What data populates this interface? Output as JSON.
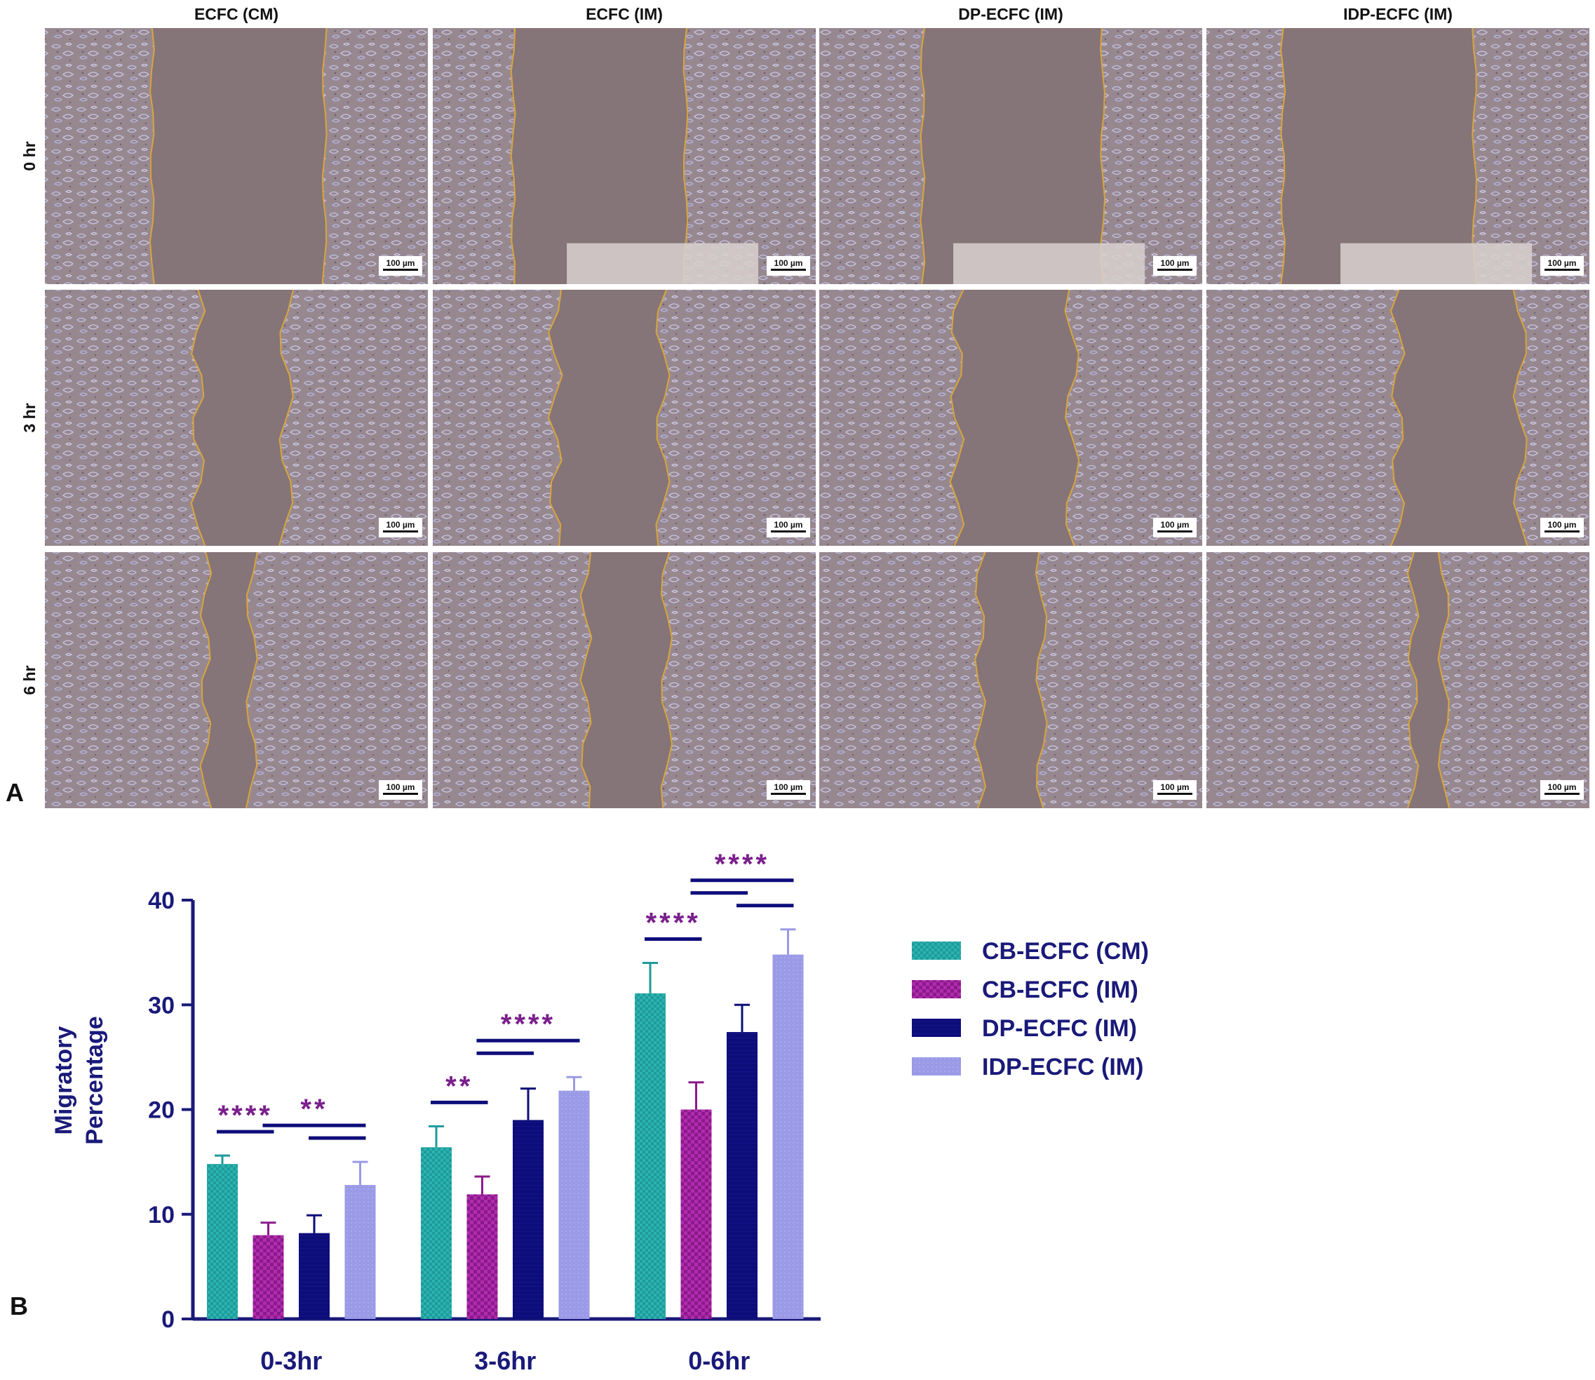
{
  "panel_a": {
    "letter": "A",
    "columns": [
      "ECFC (CM)",
      "ECFC (IM)",
      "DP-ECFC (IM)",
      "IDP-ECFC (IM)"
    ],
    "rows": [
      "0 hr",
      "3 hr",
      "6 hr"
    ],
    "scale_bar_label": "100 µm",
    "colors": {
      "tissue": "#978890",
      "gap": "#857478",
      "wound_edge": "#d9a53a",
      "scale_bar": "#111111"
    }
  },
  "panel_b": {
    "letter": "B"
  },
  "chart_data": {
    "type": "bar",
    "categories": [
      "0-3hr",
      "3-6hr",
      "0-6hr"
    ],
    "ylabel_lines": [
      "Migratory",
      "Percentage"
    ],
    "ylim": [
      0,
      40
    ],
    "yticks": [
      0,
      10,
      20,
      30,
      40
    ],
    "series": [
      {
        "name": "CB-ECFC (CM)",
        "values": [
          14.8,
          16.4,
          31.1
        ],
        "errors": [
          0.8,
          2.0,
          2.9
        ],
        "color": "#1f9a9a",
        "pattern": "teal-check"
      },
      {
        "name": "CB-ECFC (IM)",
        "values": [
          8.0,
          11.9,
          20.0
        ],
        "errors": [
          1.2,
          1.7,
          2.6
        ],
        "color": "#8b1a8b",
        "pattern": "magenta-check"
      },
      {
        "name": "DP-ECFC (IM)",
        "values": [
          8.2,
          19.0,
          27.4
        ],
        "errors": [
          1.7,
          3.0,
          2.6
        ],
        "color": "#0d0d7a",
        "pattern": "navy-solid"
      },
      {
        "name": "IDP-ECFC (IM)",
        "values": [
          12.8,
          21.8,
          34.8
        ],
        "errors": [
          2.2,
          1.3,
          2.4
        ],
        "color": "#9a9ae6",
        "pattern": "lavender-solid"
      }
    ],
    "significance": [
      {
        "label": "****",
        "category": 0,
        "bars": [
          [
            0,
            1
          ]
        ]
      },
      {
        "label": "**",
        "category": 0,
        "bars": [
          [
            1,
            3
          ],
          [
            2,
            3
          ]
        ]
      },
      {
        "label": "**",
        "category": 1,
        "bars": [
          [
            0,
            1
          ]
        ]
      },
      {
        "label": "****",
        "category": 1,
        "bars": [
          [
            1,
            3
          ],
          [
            1,
            2
          ]
        ]
      },
      {
        "label": "****",
        "category": 2,
        "bars": [
          [
            0,
            1
          ]
        ]
      },
      {
        "label": "****",
        "category": 2,
        "bars": [
          [
            1,
            3
          ],
          [
            1,
            2
          ],
          [
            2,
            3
          ]
        ]
      }
    ],
    "legend_position": "right",
    "colors": {
      "axis": "#1a1a7a",
      "significance": "#7a1f8c",
      "bracket": "#0d0d7a"
    }
  }
}
